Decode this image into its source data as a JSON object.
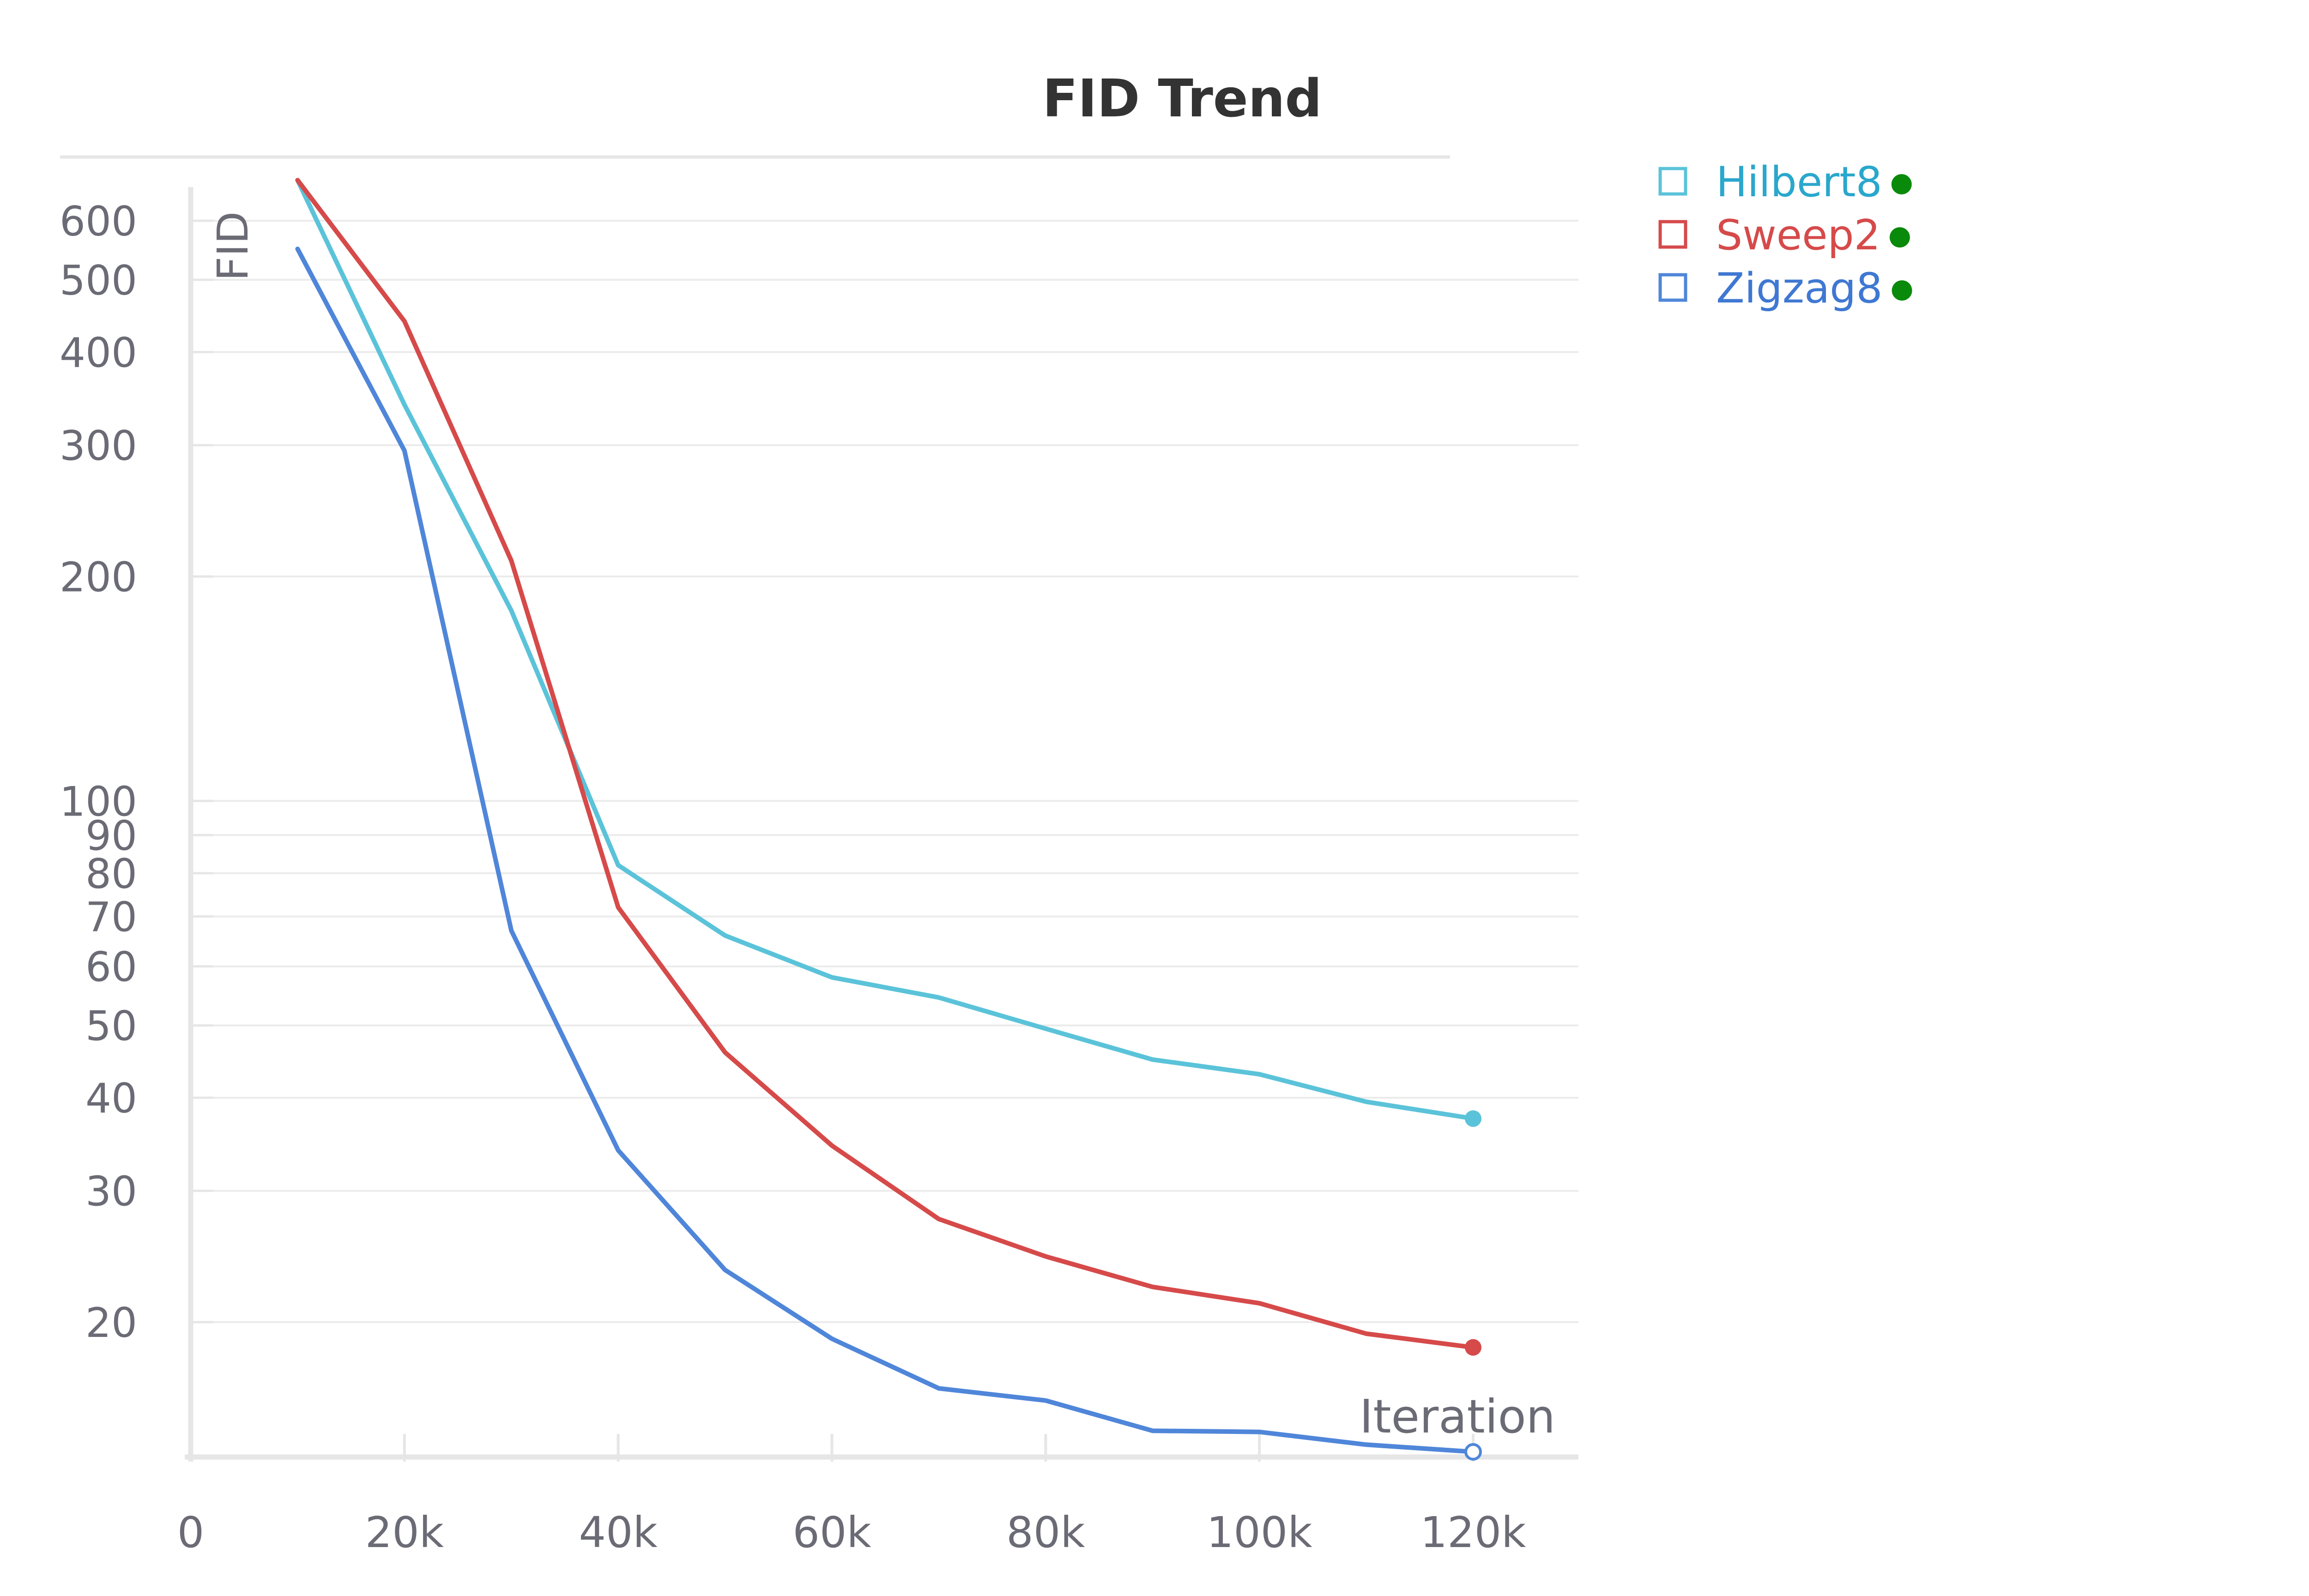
{
  "chart_data": {
    "type": "line",
    "title": "FID Trend",
    "xlabel": "Iteration",
    "ylabel": "FID",
    "y_scale": "log",
    "xlim": [
      0,
      130000
    ],
    "ylim": [
      13,
      700
    ],
    "grid": true,
    "legend_position": "top-right",
    "x_ticks": [
      0,
      20000,
      40000,
      60000,
      80000,
      100000,
      120000
    ],
    "x_tick_labels": [
      "0",
      "20k",
      "40k",
      "60k",
      "80k",
      "100k",
      "120k"
    ],
    "y_ticks": [
      20,
      30,
      40,
      50,
      60,
      70,
      80,
      90,
      100,
      200,
      300,
      400,
      500,
      600
    ],
    "y_tick_labels": [
      "20",
      "30",
      "40",
      "50",
      "60",
      "70",
      "80",
      "90",
      "100",
      "200",
      "300",
      "400",
      "500",
      "600"
    ],
    "x": [
      10000,
      20000,
      30000,
      40000,
      50000,
      60000,
      70000,
      80000,
      90000,
      100000,
      110000,
      120000
    ],
    "series": [
      {
        "name": "Hilbert8",
        "color": "#5bc3d9",
        "legend_text_color": "#2aa7cc",
        "values": [
          680,
          340,
          180,
          82,
          66,
          58,
          54.5,
          49.5,
          45,
          43,
          39.5,
          37.5
        ]
      },
      {
        "name": "Sweep2",
        "color": "#d64a4a",
        "legend_text_color": "#d64a4a",
        "values": [
          680,
          440,
          210,
          72,
          46,
          34.5,
          27.5,
          24.5,
          22.3,
          21.2,
          19.3,
          18.5
        ]
      },
      {
        "name": "Zigzag8",
        "color": "#4f86d9",
        "legend_text_color": "#3f78d2",
        "values": [
          550,
          295,
          67,
          34,
          23.5,
          19,
          16.3,
          15.7,
          14.3,
          14.25,
          13.7,
          13.4
        ]
      }
    ],
    "status_dot_color": "#0a8a0a"
  }
}
